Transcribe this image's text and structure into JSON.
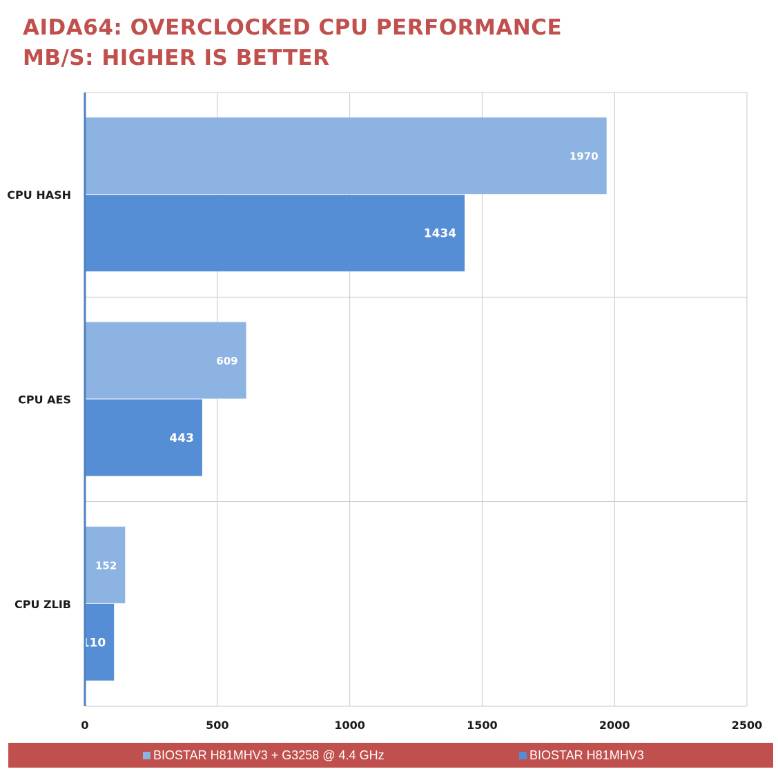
{
  "chart_data": {
    "type": "bar",
    "orientation": "horizontal",
    "title": "AIDA64: OVERCLOCKED CPU PERFORMANCE",
    "subtitle": "MB/S: HIGHER IS BETTER",
    "categories": [
      "CPU HASH",
      "CPU AES",
      "CPU ZLIB"
    ],
    "series": [
      {
        "name": "BIOSTAR H81MHV3 + G3258 @ 4.4 GHz",
        "color": "#8db3e2",
        "values": [
          1970,
          609,
          152
        ]
      },
      {
        "name": "BIOSTAR H81MHV3",
        "color": "#558ed5",
        "values": [
          1434,
          443,
          110
        ]
      }
    ],
    "xlim": [
      0,
      2500
    ],
    "xticks": [
      "0",
      "500",
      "1000",
      "1500",
      "2000",
      "2500"
    ],
    "grid": true,
    "data_labels": true,
    "legend_position": "bottom"
  }
}
